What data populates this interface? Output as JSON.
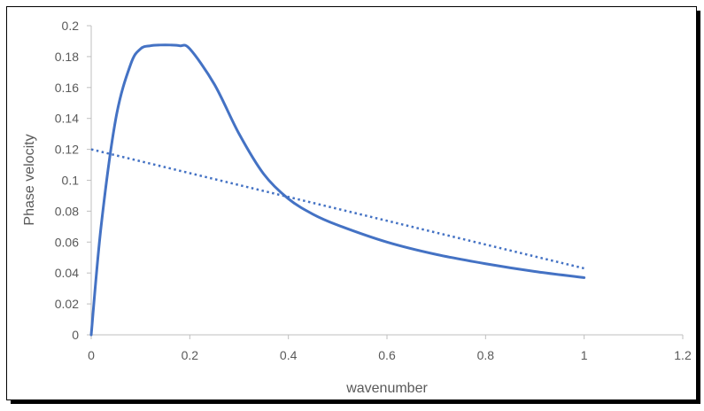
{
  "chart_data": {
    "type": "line",
    "title": "",
    "xlabel": "wavenumber",
    "ylabel": "Phase velocity",
    "xlim": [
      0,
      1.2
    ],
    "ylim": [
      0,
      0.2
    ],
    "xticks": [
      "0",
      "0.2",
      "0.4",
      "0.6",
      "0.8",
      "1",
      "1.2"
    ],
    "yticks": [
      "0",
      "0.02",
      "0.04",
      "0.06",
      "0.08",
      "0.1",
      "0.12",
      "0.14",
      "0.16",
      "0.18",
      "0.2"
    ],
    "grid": false,
    "legend": "none",
    "series": [
      {
        "style": "solid",
        "color": "#4472C4",
        "x": [
          0,
          0.02,
          0.05,
          0.08,
          0.1,
          0.12,
          0.14,
          0.16,
          0.18,
          0.2,
          0.25,
          0.3,
          0.35,
          0.4,
          0.45,
          0.5,
          0.6,
          0.7,
          0.8,
          0.9,
          1.0
        ],
        "y": [
          0,
          0.07,
          0.14,
          0.175,
          0.185,
          0.187,
          0.1875,
          0.1875,
          0.187,
          0.185,
          0.162,
          0.13,
          0.104,
          0.088,
          0.078,
          0.071,
          0.06,
          0.052,
          0.046,
          0.041,
          0.037
        ]
      },
      {
        "style": "dotted",
        "color": "#4472C4",
        "x": [
          0,
          1.0
        ],
        "y": [
          0.12,
          0.043
        ]
      }
    ]
  }
}
